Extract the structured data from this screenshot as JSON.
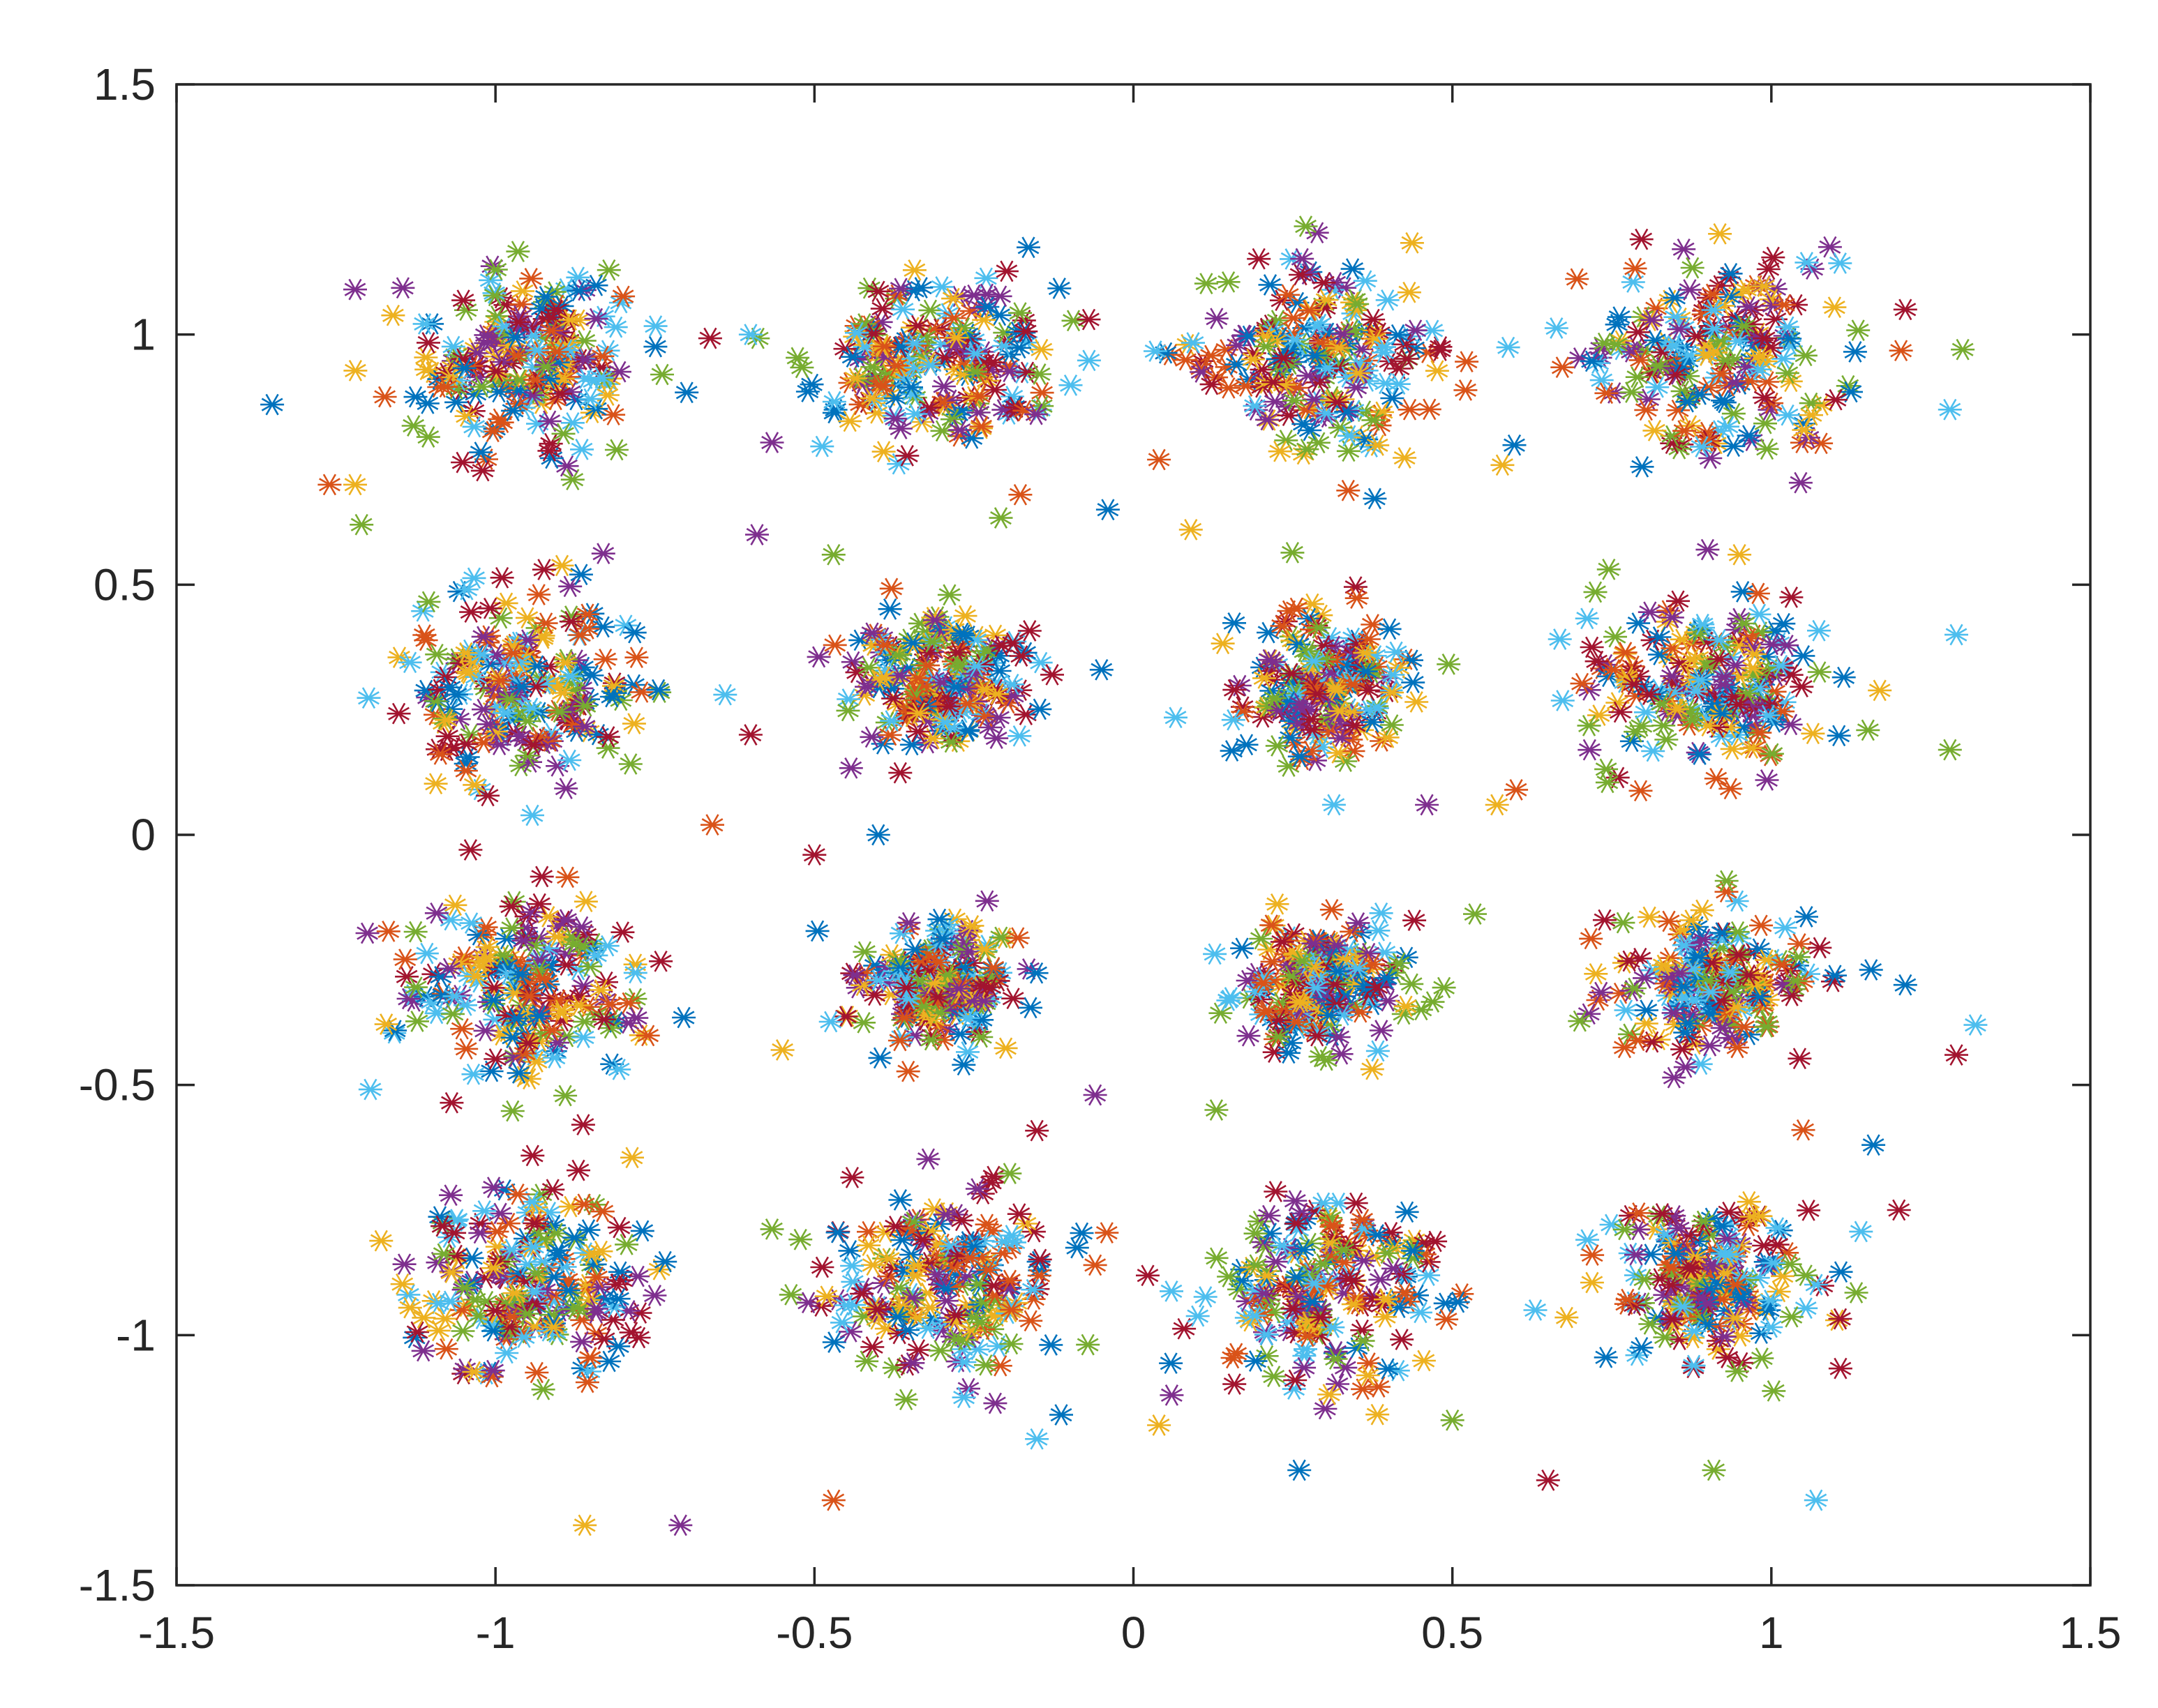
{
  "chart_data": {
    "type": "scatter",
    "title": "",
    "xlabel": "",
    "ylabel": "",
    "xlim": [
      -1.5,
      1.5
    ],
    "ylim": [
      -1.5,
      1.5
    ],
    "xticks": [
      "-1.5",
      "-1",
      "-0.5",
      "0",
      "0.5",
      "1",
      "1.5"
    ],
    "yticks": [
      "-1.5",
      "-1",
      "-0.5",
      "0",
      "0.5",
      "1",
      "1.5"
    ],
    "xtick_values": [
      -1.5,
      -1,
      -0.5,
      0,
      0.5,
      1,
      1.5
    ],
    "ytick_values": [
      -1.5,
      -1,
      -0.5,
      0,
      0.5,
      1,
      1.5
    ],
    "grid": false,
    "box": true,
    "marker": "asterisk",
    "series_colors": [
      "#0072BD",
      "#D95319",
      "#EDB120",
      "#7E2F8E",
      "#77AC30",
      "#4DBEEE",
      "#A2142F"
    ],
    "cluster_centers": [
      [
        -0.95,
        0.95
      ],
      [
        -0.3,
        0.95
      ],
      [
        0.3,
        0.95
      ],
      [
        0.9,
        0.95
      ],
      [
        -0.95,
        0.3
      ],
      [
        -0.3,
        0.3
      ],
      [
        0.3,
        0.3
      ],
      [
        0.9,
        0.3
      ],
      [
        -0.95,
        -0.3
      ],
      [
        -0.3,
        -0.3
      ],
      [
        0.3,
        -0.3
      ],
      [
        0.9,
        -0.3
      ],
      [
        -0.95,
        -0.9
      ],
      [
        -0.3,
        -0.9
      ],
      [
        0.3,
        -0.9
      ],
      [
        0.9,
        -0.9
      ]
    ],
    "cluster_spread": [
      [
        0.09,
        0.09
      ],
      [
        0.09,
        0.09
      ],
      [
        0.1,
        0.1
      ],
      [
        0.1,
        0.1
      ],
      [
        0.09,
        0.09
      ],
      [
        0.07,
        0.07
      ],
      [
        0.07,
        0.07
      ],
      [
        0.09,
        0.08
      ],
      [
        0.1,
        0.09
      ],
      [
        0.065,
        0.065
      ],
      [
        0.065,
        0.065
      ],
      [
        0.08,
        0.07
      ],
      [
        0.09,
        0.09
      ],
      [
        0.09,
        0.09
      ],
      [
        0.09,
        0.09
      ],
      [
        0.08,
        0.08
      ]
    ],
    "points_per_cluster_per_series": 30,
    "outliers": [
      [
        -1.35,
        0.86
      ],
      [
        -1.26,
        0.7
      ],
      [
        -1.22,
        0.7
      ],
      [
        -1.22,
        1.09
      ],
      [
        -1.21,
        0.62
      ],
      [
        -0.6,
        1.0
      ],
      [
        -0.07,
        1.03
      ],
      [
        -0.04,
        0.65
      ],
      [
        0.04,
        0.75
      ],
      [
        0.09,
        0.61
      ],
      [
        -0.59,
        0.6
      ],
      [
        -0.47,
        0.56
      ],
      [
        -0.64,
        0.28
      ],
      [
        -0.6,
        0.2
      ],
      [
        -0.05,
        0.33
      ],
      [
        0.6,
        0.09
      ],
      [
        0.57,
        0.06
      ],
      [
        0.46,
        0.06
      ],
      [
        1.28,
        0.17
      ],
      [
        1.29,
        0.4
      ],
      [
        -0.5,
        -0.04
      ],
      [
        -0.4,
        0.0
      ],
      [
        -0.66,
        0.02
      ],
      [
        -0.55,
        -0.43
      ],
      [
        -0.06,
        -0.52
      ],
      [
        0.13,
        -0.55
      ],
      [
        1.32,
        -0.38
      ],
      [
        1.29,
        -0.44
      ],
      [
        1.21,
        -0.3
      ],
      [
        -0.06,
        -0.86
      ],
      [
        0.04,
        -1.18
      ],
      [
        0.06,
        -1.12
      ],
      [
        0.5,
        -1.17
      ],
      [
        0.63,
        -0.95
      ],
      [
        0.65,
        -1.29
      ],
      [
        0.26,
        -1.27
      ],
      [
        -0.47,
        -1.33
      ],
      [
        -0.86,
        -1.38
      ],
      [
        -0.71,
        -1.38
      ],
      [
        0.91,
        -1.27
      ],
      [
        1.07,
        -1.33
      ],
      [
        1.2,
        -0.75
      ],
      [
        1.16,
        -0.62
      ],
      [
        1.05,
        -0.59
      ],
      [
        0.95,
        0.56
      ],
      [
        0.9,
        0.57
      ],
      [
        1.3,
        0.97
      ],
      [
        1.28,
        0.85
      ],
      [
        1.21,
        1.05
      ]
    ]
  }
}
